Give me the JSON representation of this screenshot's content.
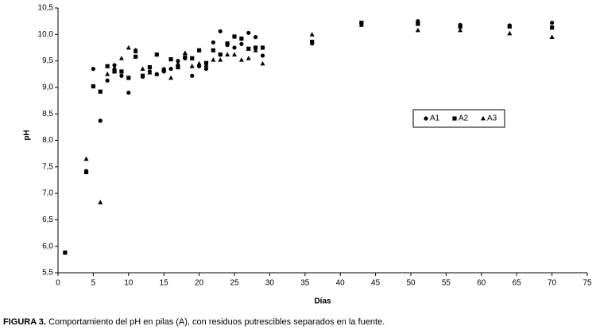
{
  "chart_data": {
    "type": "scatter",
    "y_label": "pH",
    "x_label": "Días",
    "caption_label": "FIGURA 3.",
    "caption": "Comportamiento del pH en pilas (A), con residuos putrescibles separados en la fuente.",
    "xlim": [
      0,
      75
    ],
    "xticks": [
      0,
      5,
      10,
      15,
      20,
      25,
      30,
      35,
      40,
      45,
      50,
      55,
      60,
      65,
      70,
      75
    ],
    "ylim": [
      5.5,
      10.5
    ],
    "yticks": [
      {
        "value": 5.5,
        "label": "5,5"
      },
      {
        "value": 6,
        "label": "6,0"
      },
      {
        "value": 6.5,
        "label": "6,5"
      },
      {
        "value": 7,
        "label": "7,0"
      },
      {
        "value": 7.5,
        "label": "7,5"
      },
      {
        "value": 8,
        "label": "8,0"
      },
      {
        "value": 8.5,
        "label": "8,5"
      },
      {
        "value": 9,
        "label": "9,0"
      },
      {
        "value": 9.5,
        "label": "9,5"
      },
      {
        "value": 10,
        "label": "10,0"
      },
      {
        "value": 10.5,
        "label": "10,5"
      }
    ],
    "series": [
      {
        "name": "A1",
        "color": "#000000",
        "marker": "circle",
        "x": [
          4,
          5,
          6,
          7,
          8,
          9,
          10,
          11,
          12,
          13,
          14,
          15,
          16,
          17,
          18,
          19,
          20,
          21,
          22,
          23,
          24,
          25,
          26,
          27,
          28,
          29,
          36,
          43,
          51,
          57,
          64,
          70
        ],
        "values": [
          7.42,
          9.35,
          8.37,
          9.13,
          9.42,
          9.22,
          8.9,
          9.7,
          9.2,
          9.3,
          9.25,
          9.3,
          9.35,
          9.5,
          9.55,
          9.22,
          9.4,
          9.35,
          9.85,
          10.06,
          9.8,
          9.75,
          9.82,
          10.03,
          9.95,
          9.6,
          9.83,
          10.2,
          10.25,
          10.18,
          10.17,
          10.22
        ]
      },
      {
        "name": "A2",
        "color": "#000000",
        "marker": "square",
        "x": [
          1,
          4,
          5,
          6,
          7,
          8,
          9,
          10,
          11,
          12,
          13,
          14,
          15,
          16,
          17,
          18,
          19,
          20,
          21,
          22,
          23,
          24,
          25,
          26,
          27,
          28,
          29,
          36,
          43,
          51,
          57,
          64,
          70
        ],
        "values": [
          5.88,
          7.4,
          9.02,
          8.92,
          9.4,
          9.3,
          9.3,
          9.18,
          9.58,
          9.22,
          9.38,
          9.62,
          9.33,
          9.53,
          9.38,
          9.57,
          9.55,
          9.7,
          9.46,
          9.7,
          9.62,
          9.83,
          9.96,
          9.92,
          9.73,
          9.75,
          9.75,
          9.86,
          10.22,
          10.2,
          10.15,
          10.15,
          10.13
        ]
      },
      {
        "name": "A3",
        "color": "#000000",
        "marker": "triangle",
        "x": [
          4,
          6,
          7,
          8,
          9,
          10,
          11,
          12,
          13,
          14,
          15,
          16,
          17,
          18,
          19,
          20,
          21,
          22,
          23,
          24,
          25,
          26,
          27,
          28,
          29,
          36,
          43,
          51,
          57,
          64,
          70
        ],
        "values": [
          7.65,
          6.83,
          9.25,
          9.37,
          9.55,
          9.75,
          9.68,
          9.35,
          9.28,
          9.25,
          9.35,
          9.18,
          9.45,
          9.65,
          9.4,
          9.45,
          9.42,
          9.52,
          9.52,
          9.62,
          9.62,
          9.52,
          9.55,
          9.7,
          9.45,
          10.0,
          10.18,
          10.08,
          10.08,
          10.02,
          9.95
        ]
      }
    ]
  }
}
